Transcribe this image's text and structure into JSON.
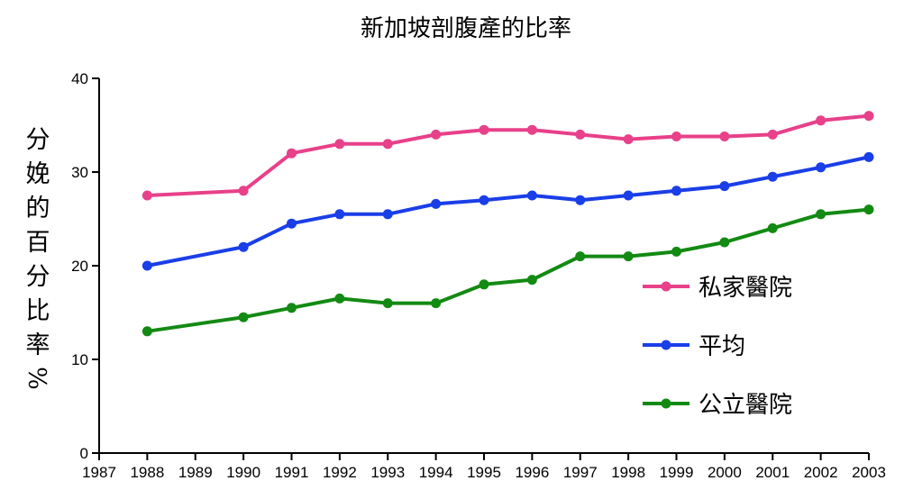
{
  "chart_data": {
    "type": "line",
    "title": "新加坡剖腹產的比率",
    "xlabel": "",
    "ylabel": "分娩的百分比率%",
    "xlim": [
      1987,
      2003
    ],
    "ylim": [
      0,
      40
    ],
    "x_ticks": [
      1987,
      1988,
      1989,
      1990,
      1991,
      1992,
      1993,
      1994,
      1995,
      1996,
      1997,
      1998,
      1999,
      2000,
      2001,
      2002,
      2003
    ],
    "y_ticks": [
      0,
      10,
      20,
      30,
      40
    ],
    "grid": false,
    "legend_position": "right",
    "series": [
      {
        "name": "私家醫院",
        "color": "#e8408a",
        "x": [
          1988,
          1990,
          1991,
          1992,
          1993,
          1994,
          1995,
          1996,
          1997,
          1998,
          1999,
          2000,
          2001,
          2002,
          2003
        ],
        "values": [
          27.5,
          28.0,
          32.0,
          33.0,
          33.0,
          34.0,
          34.5,
          34.5,
          34.0,
          33.5,
          33.8,
          33.8,
          34.0,
          35.5,
          36.0
        ]
      },
      {
        "name": "平均",
        "color": "#1a3ee8",
        "x": [
          1988,
          1990,
          1991,
          1992,
          1993,
          1994,
          1995,
          1996,
          1997,
          1998,
          1999,
          2000,
          2001,
          2002,
          2003
        ],
        "values": [
          20.0,
          22.0,
          24.5,
          25.5,
          25.5,
          26.6,
          27.0,
          27.5,
          27.0,
          27.5,
          28.0,
          28.5,
          29.5,
          30.5,
          31.6
        ]
      },
      {
        "name": "公立醫院",
        "color": "#138a13",
        "x": [
          1988,
          1990,
          1991,
          1992,
          1993,
          1994,
          1995,
          1996,
          1997,
          1998,
          1999,
          2000,
          2001,
          2002,
          2003
        ],
        "values": [
          13.0,
          14.5,
          15.5,
          16.5,
          16.0,
          16.0,
          18.0,
          18.5,
          21.0,
          21.0,
          21.5,
          22.5,
          24.0,
          25.5,
          26.0
        ]
      }
    ]
  }
}
